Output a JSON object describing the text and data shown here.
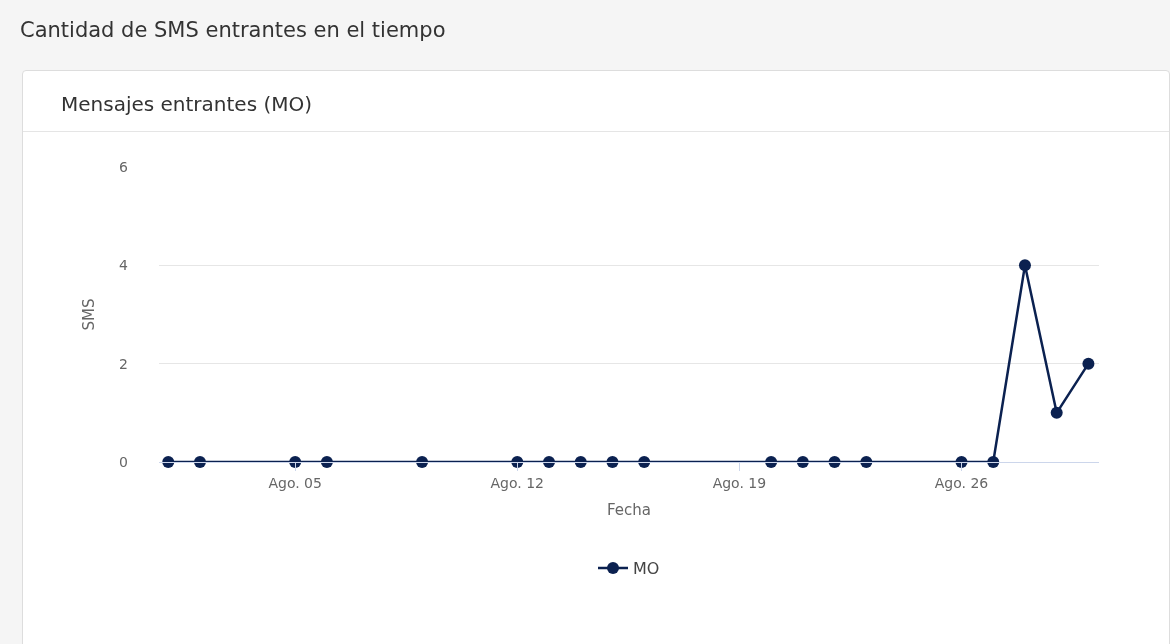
{
  "chart_data": {
    "type": "line",
    "title": "Cantidad de SMS entrantes en el tiempo",
    "subtitle": "Mensajes entrantes (MO)",
    "xlabel": "Fecha",
    "ylabel": "SMS",
    "x": [
      "--08-01",
      "--08-02",
      "--08-05",
      "--08-06",
      "--08-09",
      "--08-12",
      "--08-13",
      "--08-14",
      "--08-15",
      "--08-16",
      "--08-20",
      "--08-21",
      "--08-22",
      "--08-23",
      "--08-26",
      "--08-27",
      "--08-28",
      "--08-29",
      "--08-30"
    ],
    "series": [
      {
        "name": "MO",
        "color": "#0b2150",
        "values": [
          0,
          0,
          0,
          0,
          0,
          0,
          0,
          0,
          0,
          0,
          0,
          0,
          0,
          0,
          0,
          0,
          4,
          1,
          2
        ]
      }
    ],
    "xlim": [
      "--07-31T17:00",
      "--08-30T08:00"
    ],
    "xticks": [
      {
        "value": "--08-05",
        "label": "Ago. 05"
      },
      {
        "value": "--08-12",
        "label": "Ago. 12"
      },
      {
        "value": "--08-19",
        "label": "Ago. 19"
      },
      {
        "value": "--08-26",
        "label": "Ago. 26"
      }
    ],
    "ylim": [
      0,
      6
    ],
    "yticks": [
      0,
      2,
      4,
      6
    ],
    "grid": "y",
    "legend": "bottom",
    "marker": "circle",
    "line_style": "solid"
  }
}
